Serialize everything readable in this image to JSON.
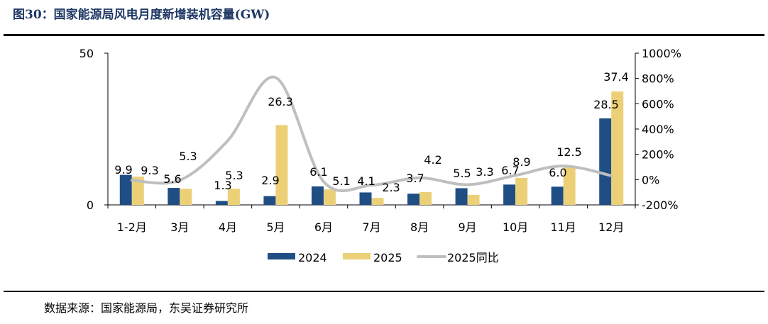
{
  "title": "图30：国家能源局风电月度新增装机容量(GW)",
  "source": "数据来源：国家能源局，东吴证券研究所",
  "chart_data": {
    "type": "bar+line",
    "title": "图30：国家能源局风电月度新增装机容量(GW)",
    "categories": [
      "1-2月",
      "3月",
      "4月",
      "5月",
      "6月",
      "7月",
      "8月",
      "9月",
      "10月",
      "11月",
      "12月"
    ],
    "series": [
      {
        "name": "2024",
        "type": "bar",
        "axis": "left",
        "color": "#1f4e84",
        "values": [
          9.9,
          5.6,
          1.3,
          2.9,
          6.1,
          4.1,
          3.7,
          5.5,
          6.7,
          6.0,
          28.5
        ]
      },
      {
        "name": "2025",
        "type": "bar",
        "axis": "left",
        "color": "#ecd077",
        "values": [
          9.3,
          5.3,
          5.3,
          26.3,
          5.1,
          2.3,
          4.2,
          3.3,
          8.9,
          12.5,
          37.4
        ]
      },
      {
        "name": "2025同比",
        "type": "line",
        "axis": "right",
        "color": "#bfbfbf",
        "values": [
          -6,
          -5,
          308,
          807,
          -16,
          -44,
          14,
          -40,
          33,
          108,
          31
        ]
      }
    ],
    "left_axis": {
      "ylim": [
        0,
        50
      ],
      "ticks": [
        "0",
        "50"
      ]
    },
    "right_axis": {
      "ylim": [
        -200,
        1000
      ],
      "ticks": [
        "-200%",
        "0%",
        "200%",
        "400%",
        "600%",
        "800%",
        "1000%"
      ]
    },
    "legend_position": "bottom",
    "grid": false
  }
}
